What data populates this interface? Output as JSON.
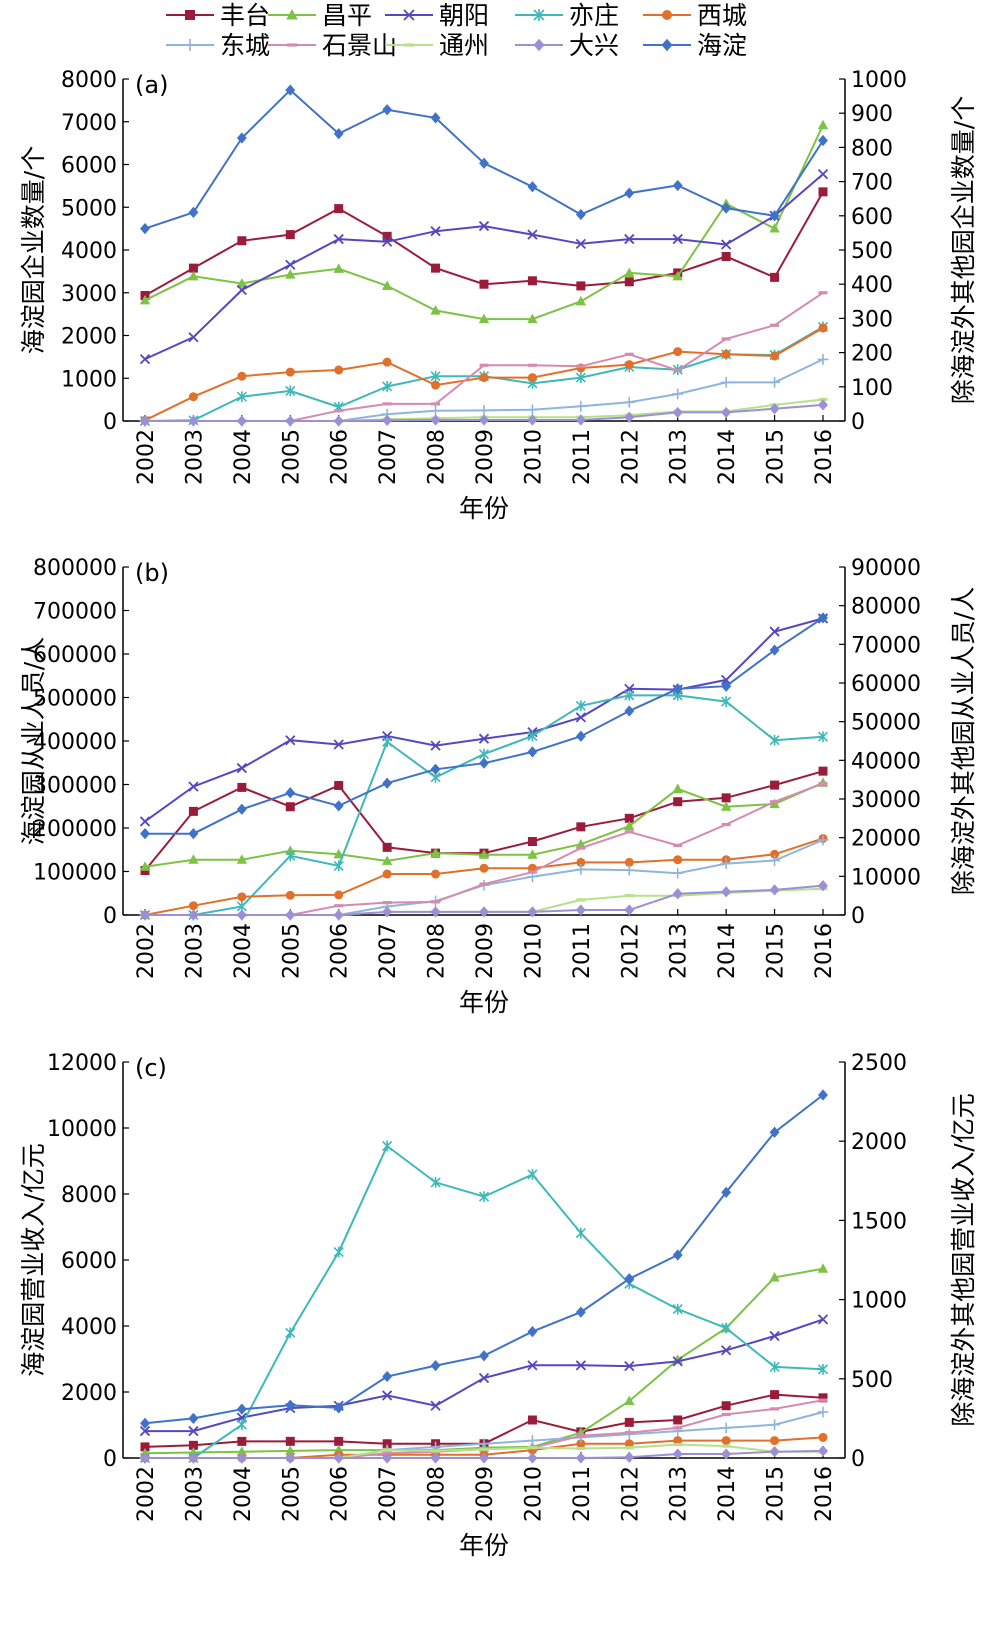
{
  "legend": {
    "items": [
      {
        "name": "丰台",
        "color": "#9b1b3a",
        "marker": "square"
      },
      {
        "name": "昌平",
        "color": "#7cc244",
        "marker": "triangle"
      },
      {
        "name": "朝阳",
        "color": "#5547c2",
        "marker": "x"
      },
      {
        "name": "亦庄",
        "color": "#3eb8b8",
        "marker": "star"
      },
      {
        "name": "西城",
        "color": "#e0702a",
        "marker": "circle"
      },
      {
        "name": "东城",
        "color": "#8fb4dd",
        "marker": "plus"
      },
      {
        "name": "石景山",
        "color": "#d58ab0",
        "marker": "dash"
      },
      {
        "name": "通州",
        "color": "#b6e08c",
        "marker": "dash"
      },
      {
        "name": "大兴",
        "color": "#9c8fd6",
        "marker": "diamond"
      },
      {
        "name": "海淀",
        "color": "#3f72c8",
        "marker": "diamond"
      }
    ]
  },
  "chart_data": [
    {
      "type": "line",
      "panel_label": "(a)",
      "xlabel": "年份",
      "ylabel_left": "海淀园企业数量/个",
      "ylabel_right": "除海淀外其他园企业数量/个",
      "x": [
        "2002",
        "2003",
        "2004",
        "2005",
        "2006",
        "2007",
        "2008",
        "2009",
        "2010",
        "2011",
        "2012",
        "2013",
        "2014",
        "2015",
        "2016"
      ],
      "ylim_left": [
        0,
        8000
      ],
      "yticks_left": [
        0,
        1000,
        2000,
        3000,
        4000,
        5000,
        6000,
        7000,
        8000
      ],
      "ylim_right": [
        0,
        1000
      ],
      "yticks_right": [
        0,
        100,
        200,
        300,
        400,
        500,
        600,
        700,
        800,
        900,
        1000
      ],
      "grid": false,
      "series": [
        {
          "name": "丰台",
          "axis": "right",
          "values": [
            367,
            447,
            527,
            545,
            621,
            540,
            447,
            400,
            410,
            395,
            407,
            433,
            481,
            420,
            670
          ]
        },
        {
          "name": "昌平",
          "axis": "right",
          "values": [
            353,
            423,
            402,
            428,
            445,
            395,
            323,
            298,
            298,
            350,
            433,
            423,
            635,
            563,
            865
          ]
        },
        {
          "name": "朝阳",
          "axis": "right",
          "values": [
            181,
            245,
            383,
            457,
            532,
            524,
            555,
            570,
            545,
            518,
            532,
            532,
            516,
            600,
            722
          ]
        },
        {
          "name": "亦庄",
          "axis": "right",
          "values": [
            0,
            2,
            71,
            88,
            41,
            101,
            131,
            131,
            110,
            127,
            158,
            150,
            195,
            193,
            275
          ]
        },
        {
          "name": "西城",
          "axis": "right",
          "values": [
            2,
            71,
            131,
            143,
            149,
            172,
            105,
            127,
            127,
            155,
            165,
            203,
            195,
            190,
            272
          ]
        },
        {
          "name": "东城",
          "axis": "right",
          "values": [
            0,
            0,
            0,
            0,
            0,
            20,
            30,
            31,
            33,
            43,
            55,
            79,
            113,
            113,
            180
          ]
        },
        {
          "name": "石景山",
          "axis": "right",
          "values": [
            0,
            0,
            0,
            0,
            30,
            50,
            50,
            163,
            163,
            160,
            195,
            148,
            240,
            280,
            375
          ]
        },
        {
          "name": "通州",
          "axis": "right",
          "values": [
            0,
            0,
            0,
            0,
            0,
            5,
            8,
            11,
            11,
            11,
            17,
            28,
            28,
            47,
            63
          ]
        },
        {
          "name": "大兴",
          "axis": "right",
          "values": [
            0,
            0,
            0,
            0,
            0,
            2,
            3,
            3,
            3,
            3,
            11,
            25,
            25,
            36,
            47
          ]
        },
        {
          "name": "海淀",
          "axis": "left",
          "values": [
            4500,
            4880,
            6620,
            7740,
            6720,
            7280,
            7090,
            6030,
            5480,
            4830,
            5330,
            5510,
            4980,
            4800,
            6560
          ]
        }
      ]
    },
    {
      "type": "line",
      "panel_label": "(b)",
      "xlabel": "年份",
      "ylabel_left": "海淀园从业人员/人",
      "ylabel_right": "除海淀外其他园从业人员/人",
      "x": [
        "2002",
        "2003",
        "2004",
        "2005",
        "2006",
        "2007",
        "2008",
        "2009",
        "2010",
        "2011",
        "2012",
        "2013",
        "2014",
        "2015",
        "2016"
      ],
      "ylim_left": [
        0,
        800000
      ],
      "yticks_left": [
        0,
        100000,
        200000,
        300000,
        400000,
        500000,
        600000,
        700000,
        800000
      ],
      "ylim_right": [
        0,
        90000
      ],
      "yticks_right": [
        0,
        10000,
        20000,
        30000,
        40000,
        50000,
        60000,
        70000,
        80000,
        90000
      ],
      "grid": false,
      "series": [
        {
          "name": "丰台",
          "axis": "right",
          "values": [
            11500,
            26800,
            33000,
            28000,
            33500,
            17500,
            16000,
            16000,
            19000,
            22800,
            25000,
            29300,
            30300,
            33600,
            37200
          ]
        },
        {
          "name": "昌平",
          "axis": "right",
          "values": [
            12500,
            14300,
            14300,
            16600,
            15700,
            14000,
            16000,
            15600,
            15600,
            18300,
            23000,
            32600,
            28000,
            28700,
            34200
          ]
        },
        {
          "name": "朝阳",
          "axis": "right",
          "values": [
            24200,
            33200,
            38000,
            45200,
            44100,
            46300,
            43800,
            45600,
            47300,
            51100,
            58500,
            58300,
            60800,
            73300,
            76700
          ]
        },
        {
          "name": "亦庄",
          "axis": "right",
          "values": [
            0,
            0,
            2200,
            15300,
            12700,
            44800,
            35600,
            41600,
            46300,
            54100,
            56800,
            56800,
            55200,
            45200,
            46100
          ]
        },
        {
          "name": "西城",
          "axis": "right",
          "values": [
            0,
            2400,
            4700,
            5100,
            5200,
            10600,
            10600,
            12100,
            12100,
            13600,
            13600,
            14300,
            14300,
            15700,
            19800
          ]
        },
        {
          "name": "东城",
          "axis": "right",
          "values": [
            0,
            0,
            0,
            0,
            0,
            2200,
            3600,
            7700,
            9900,
            11800,
            11600,
            10800,
            13300,
            14100,
            19400
          ]
        },
        {
          "name": "石景山",
          "axis": "right",
          "values": [
            0,
            0,
            0,
            0,
            2400,
            3200,
            3400,
            8000,
            11100,
            17300,
            21500,
            18000,
            23400,
            29300,
            34000
          ]
        },
        {
          "name": "通州",
          "axis": "right",
          "values": [
            0,
            0,
            0,
            0,
            0,
            800,
            800,
            800,
            800,
            3900,
            5000,
            5000,
            5700,
            6300,
            6800
          ]
        },
        {
          "name": "大兴",
          "axis": "right",
          "values": [
            0,
            0,
            0,
            0,
            0,
            800,
            800,
            800,
            800,
            1300,
            1300,
            5500,
            6000,
            6500,
            7600
          ]
        },
        {
          "name": "海淀",
          "axis": "left",
          "values": [
            187000,
            187000,
            243000,
            281000,
            251000,
            303000,
            335000,
            349000,
            375000,
            411000,
            469000,
            520000,
            526000,
            609000,
            683000
          ]
        }
      ]
    },
    {
      "type": "line",
      "panel_label": "(c)",
      "xlabel": "年份",
      "ylabel_left": "海淀园营业收入/亿元",
      "ylabel_right": "除海淀外其他园营业收入/亿元",
      "x": [
        "2002",
        "2003",
        "2004",
        "2005",
        "2006",
        "2007",
        "2008",
        "2009",
        "2010",
        "2011",
        "2012",
        "2013",
        "2014",
        "2015",
        "2016"
      ],
      "ylim_left": [
        0,
        12000
      ],
      "yticks_left": [
        0,
        2000,
        4000,
        6000,
        8000,
        10000,
        12000
      ],
      "ylim_right": [
        0,
        2500
      ],
      "yticks_right": [
        0,
        500,
        1000,
        1500,
        2000,
        2500
      ],
      "grid": false,
      "series": [
        {
          "name": "丰台",
          "axis": "right",
          "values": [
            70,
            80,
            105,
            105,
            105,
            90,
            90,
            90,
            240,
            165,
            225,
            240,
            330,
            400,
            380
          ]
        },
        {
          "name": "昌平",
          "axis": "right",
          "values": [
            30,
            35,
            40,
            45,
            50,
            50,
            50,
            65,
            70,
            160,
            360,
            620,
            820,
            1140,
            1195
          ]
        },
        {
          "name": "朝阳",
          "axis": "right",
          "values": [
            170,
            170,
            255,
            315,
            330,
            395,
            330,
            505,
            585,
            585,
            580,
            610,
            680,
            770,
            875
          ]
        },
        {
          "name": "亦庄",
          "axis": "right",
          "values": [
            0,
            0,
            210,
            790,
            1300,
            1970,
            1740,
            1650,
            1790,
            1420,
            1100,
            940,
            820,
            575,
            560
          ]
        },
        {
          "name": "西城",
          "axis": "right",
          "values": [
            0,
            0,
            0,
            0,
            20,
            20,
            20,
            20,
            50,
            90,
            90,
            110,
            110,
            110,
            130
          ]
        },
        {
          "name": "东城",
          "axis": "right",
          "values": [
            0,
            0,
            0,
            0,
            0,
            50,
            70,
            90,
            110,
            130,
            150,
            170,
            190,
            210,
            290
          ]
        },
        {
          "name": "石景山",
          "axis": "right",
          "values": [
            0,
            0,
            0,
            0,
            0,
            30,
            40,
            55,
            65,
            140,
            160,
            190,
            275,
            310,
            365
          ]
        },
        {
          "name": "通州",
          "axis": "right",
          "values": [
            0,
            0,
            0,
            0,
            0,
            50,
            45,
            55,
            65,
            60,
            65,
            85,
            75,
            40,
            40
          ]
        },
        {
          "name": "大兴",
          "axis": "right",
          "values": [
            0,
            0,
            0,
            0,
            0,
            0,
            0,
            0,
            0,
            0,
            5,
            25,
            25,
            40,
            45
          ]
        },
        {
          "name": "海淀",
          "axis": "left",
          "values": [
            1050,
            1200,
            1480,
            1600,
            1520,
            2470,
            2800,
            3100,
            3830,
            4420,
            5430,
            6150,
            8050,
            9870,
            11000
          ]
        }
      ]
    }
  ]
}
